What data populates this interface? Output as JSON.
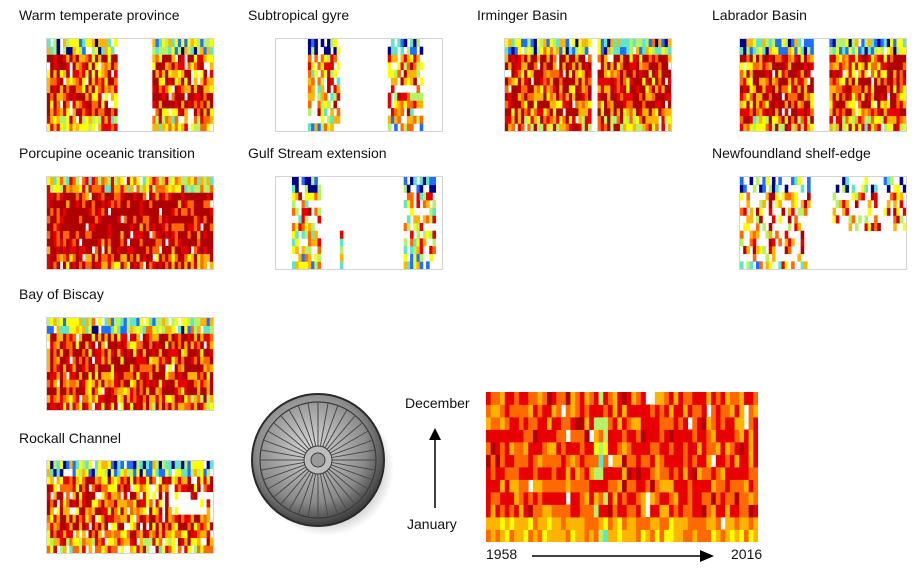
{
  "colormap": [
    "#00008c",
    "#1e6fff",
    "#5fe6c8",
    "#b5f26a",
    "#ffff00",
    "#ffb400",
    "#ff6a00",
    "#e80000",
    "#b00000"
  ],
  "missing_color": "#ffffff",
  "panels": [
    {
      "title": "Warm temperate province"
    },
    {
      "title": "Subtropical gyre"
    },
    {
      "title": "Irminger Basin"
    },
    {
      "title": "Labrador Basin"
    },
    {
      "title": "Porcupine oceanic transition"
    },
    {
      "title": "Gulf Stream extension"
    },
    {
      "title": "Newfoundland shelf-edge"
    },
    {
      "title": "Bay of Biscay"
    },
    {
      "title": "Rockall Channel"
    }
  ],
  "legend": {
    "y_top": "December",
    "y_bottom": "January",
    "x_left": "1958",
    "x_right": "2016"
  },
  "chart_data": {
    "type": "heatmap",
    "x_range": [
      1958,
      2016
    ],
    "y_range": [
      "January",
      "December"
    ],
    "note_rows": "months",
    "note_cols": "years"
  },
  "icons": {
    "diatom": "diatom-icon",
    "arrow_up": "arrow-up-icon",
    "arrow_right": "arrow-right-icon"
  }
}
